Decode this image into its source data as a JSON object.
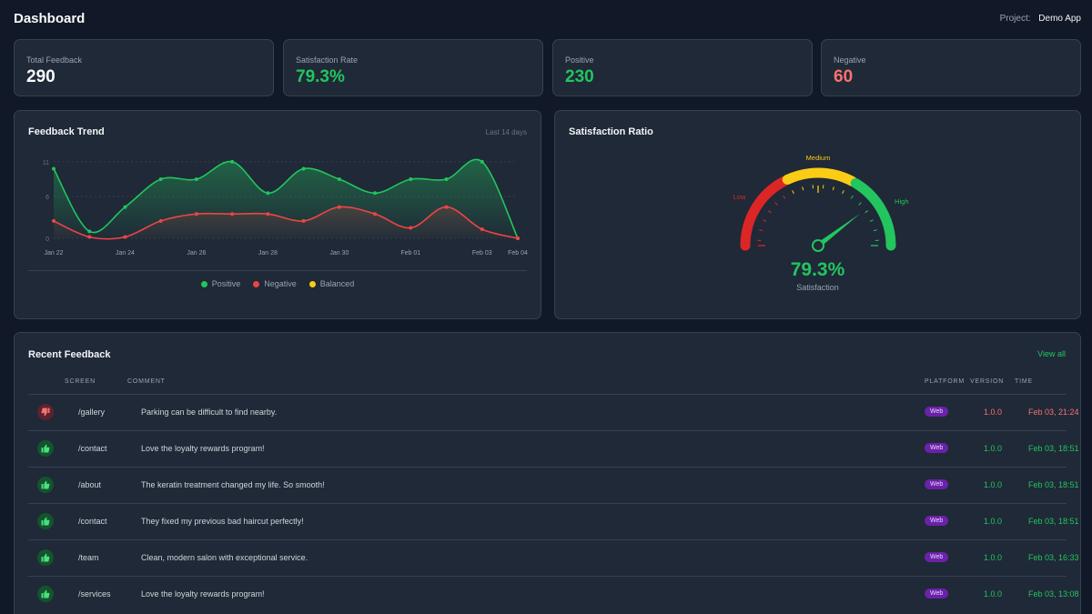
{
  "header": {
    "title": "Dashboard",
    "project_label": "Project:",
    "project_name": "Demo App"
  },
  "stats": [
    {
      "label": "Total Feedback",
      "value": "290",
      "color": "#f9fafb"
    },
    {
      "label": "Satisfaction Rate",
      "value": "79.3%",
      "color": "#22c55e"
    },
    {
      "label": "Positive",
      "value": "230",
      "color": "#22c55e"
    },
    {
      "label": "Negative",
      "value": "60",
      "color": "#f87171"
    }
  ],
  "trend": {
    "title": "Feedback Trend",
    "range_label": "Last 14 days",
    "legend": [
      {
        "label": "Positive",
        "color": "#22c55e"
      },
      {
        "label": "Negative",
        "color": "#ef4444"
      },
      {
        "label": "Balanced",
        "color": "#facc15"
      }
    ]
  },
  "chart_data": {
    "type": "line",
    "x": [
      "Jan 22",
      "Jan 23",
      "Jan 24",
      "Jan 25",
      "Jan 26",
      "Jan 27",
      "Jan 28",
      "Jan 29",
      "Jan 30",
      "Jan 31",
      "Feb 01",
      "Feb 02",
      "Feb 03",
      "Feb 04"
    ],
    "tick_labels": [
      "Jan 22",
      "Jan 24",
      "Jan 26",
      "Jan 28",
      "Jan 30",
      "Feb 01",
      "Feb 03",
      "Feb 04"
    ],
    "y_ticks": [
      0,
      6,
      11
    ],
    "ylim": [
      0,
      11.5
    ],
    "grid": true,
    "legend_position": "bottom",
    "series": [
      {
        "name": "Positive",
        "color": "#22c55e",
        "values": [
          10,
          1,
          4.5,
          8.5,
          8.5,
          11,
          6.5,
          10,
          8.5,
          6.5,
          8.5,
          8.5,
          11,
          0
        ]
      },
      {
        "name": "Negative",
        "color": "#ef4444",
        "values": [
          2.5,
          0.2,
          0.2,
          2.5,
          3.5,
          3.5,
          3.5,
          2.5,
          4.5,
          3.5,
          1.5,
          4.5,
          1.3,
          0
        ]
      }
    ]
  },
  "gauge": {
    "title": "Satisfaction Ratio",
    "value": 79.3,
    "value_label": "79.3%",
    "caption": "Satisfaction",
    "zones": [
      {
        "label": "Low",
        "color": "#dc2626"
      },
      {
        "label": "Medium",
        "color": "#facc15"
      },
      {
        "label": "High",
        "color": "#22c55e"
      }
    ]
  },
  "recent": {
    "title": "Recent Feedback",
    "view_all": "View all",
    "columns": [
      "SCREEN",
      "COMMENT",
      "PLATFORM",
      "VERSION",
      "TIME"
    ],
    "rows": [
      {
        "sentiment": "negative",
        "screen": "/gallery",
        "comment": "Parking can be difficult to find nearby.",
        "platform": "Web",
        "version": "1.0.0",
        "time": "Feb 03, 21:24"
      },
      {
        "sentiment": "positive",
        "screen": "/contact",
        "comment": "Love the loyalty rewards program!",
        "platform": "Web",
        "version": "1.0.0",
        "time": "Feb 03, 18:51"
      },
      {
        "sentiment": "positive",
        "screen": "/about",
        "comment": "The keratin treatment changed my life. So smooth!",
        "platform": "Web",
        "version": "1.0.0",
        "time": "Feb 03, 18:51"
      },
      {
        "sentiment": "positive",
        "screen": "/contact",
        "comment": "They fixed my previous bad haircut perfectly!",
        "platform": "Web",
        "version": "1.0.0",
        "time": "Feb 03, 18:51"
      },
      {
        "sentiment": "positive",
        "screen": "/team",
        "comment": "Clean, modern salon with exceptional service.",
        "platform": "Web",
        "version": "1.0.0",
        "time": "Feb 03, 16:33"
      },
      {
        "sentiment": "positive",
        "screen": "/services",
        "comment": "Love the loyalty rewards program!",
        "platform": "Web",
        "version": "1.0.0",
        "time": "Feb 03, 13:08"
      }
    ]
  },
  "colors": {
    "positive": "#22c55e",
    "negative": "#f87171",
    "accent": "#22c55e",
    "badge": "#6b21a8"
  }
}
